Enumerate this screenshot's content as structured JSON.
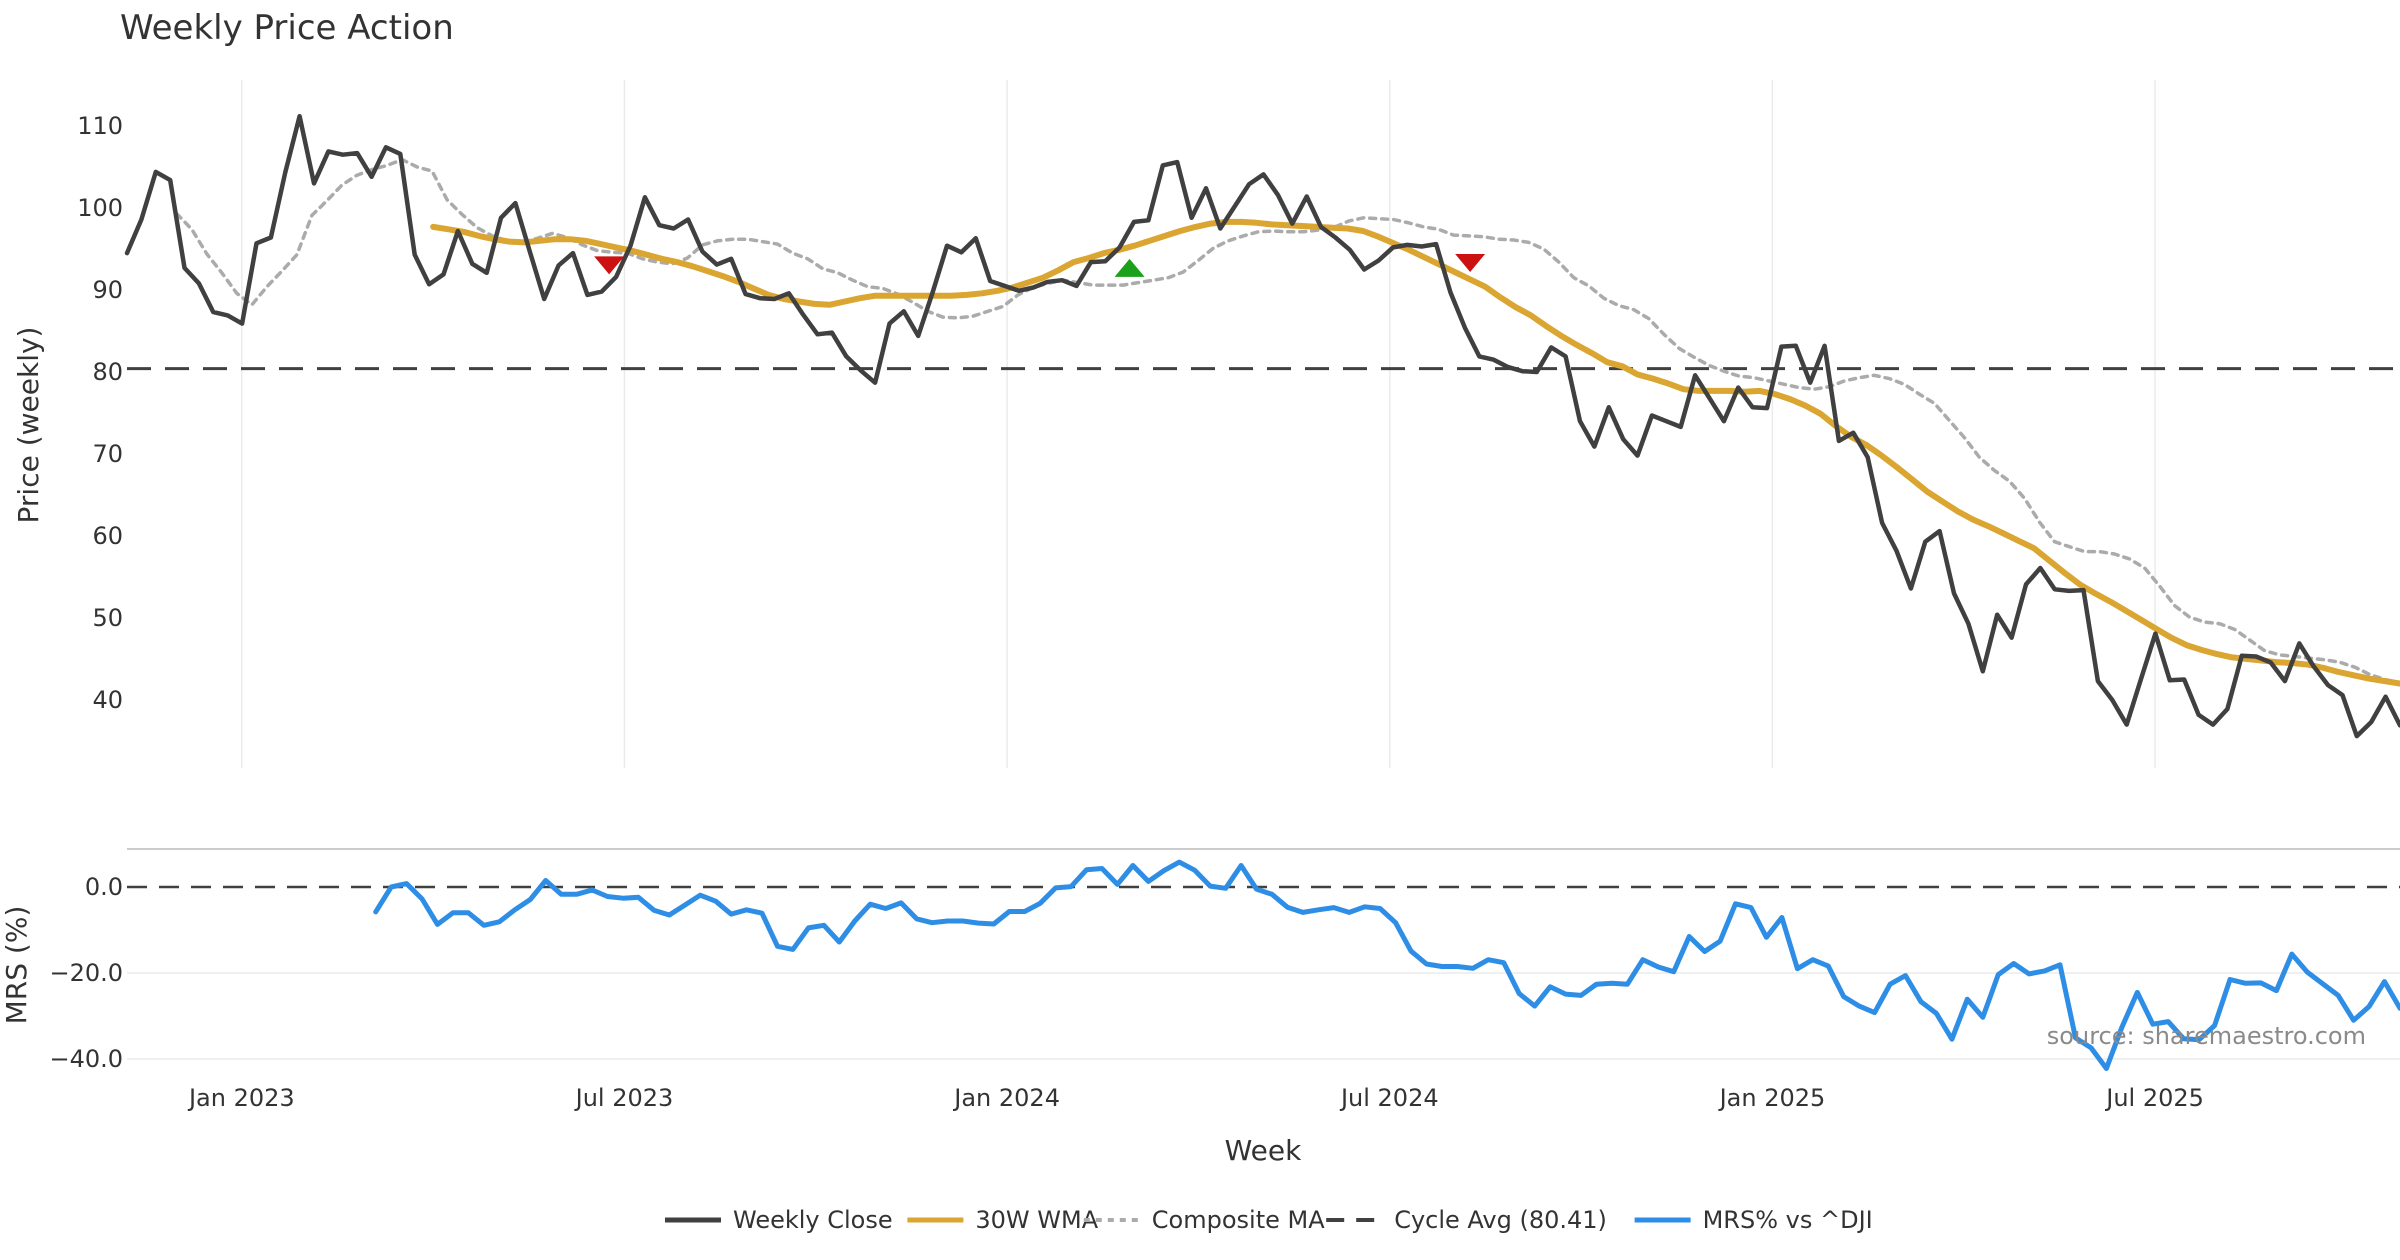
{
  "chart_data": {
    "type": "line",
    "title": "Weekly Price Action",
    "xlabel": "Week",
    "x_ticks": [
      "Jan 2023",
      "Jul 2023",
      "Jan 2024",
      "Jul 2024",
      "Jan 2025",
      "Jul 2025"
    ],
    "x_tick_values": [
      2023.0,
      2023.5,
      2024.0,
      2024.5,
      2025.0,
      2025.5
    ],
    "x_range": [
      2022.85,
      2025.82
    ],
    "price_panel": {
      "ylabel": "Price (weekly)",
      "ylim": [
        31,
        115
      ],
      "y_ticks": [
        40,
        50,
        60,
        70,
        80,
        90,
        100,
        110
      ],
      "cycle_avg": 80.41,
      "series": [
        {
          "name": "Weekly Close",
          "color": "#404040",
          "x_start": 2022.85,
          "x_end": 2025.82,
          "values": [
            94.5,
            98.6,
            104.4,
            103.4,
            92.7,
            90.8,
            87.3,
            86.9,
            85.9,
            95.7,
            96.4,
            104.3,
            111.2,
            103.0,
            106.9,
            106.5,
            106.7,
            103.8,
            107.4,
            106.6,
            94.3,
            90.7,
            91.9,
            97.2,
            93.2,
            92.1,
            98.8,
            100.6,
            94.7,
            88.9,
            93.0,
            94.5,
            89.4,
            89.8,
            91.6,
            95.4,
            101.3,
            97.9,
            97.5,
            98.6,
            94.7,
            93.1,
            93.8,
            89.5,
            89.0,
            88.9,
            89.6,
            87.0,
            84.6,
            84.8,
            81.9,
            80.2,
            78.7,
            85.9,
            87.4,
            84.4,
            89.7,
            95.4,
            94.6,
            96.3,
            91.1,
            90.5,
            89.9,
            90.3,
            91.0,
            91.2,
            90.5,
            93.4,
            93.5,
            95.2,
            98.3,
            98.5,
            105.2,
            105.6,
            98.8,
            102.4,
            97.5,
            100.2,
            102.9,
            104.1,
            101.6,
            98.1,
            101.4,
            97.7,
            96.4,
            94.9,
            92.5,
            93.6,
            95.2,
            95.5,
            95.3,
            95.6,
            89.7,
            85.4,
            81.9,
            81.5,
            80.6,
            80.1,
            80.0,
            83.0,
            81.9,
            74.0,
            70.9,
            75.7,
            71.8,
            69.8,
            74.7,
            74.0,
            73.3,
            79.6,
            76.8,
            74.0,
            78.1,
            75.7,
            75.6,
            83.1,
            83.2,
            78.7,
            83.2,
            71.6,
            72.6,
            69.6,
            61.6,
            58.2,
            53.6,
            59.3,
            60.6,
            53.0,
            49.3,
            43.5,
            50.4,
            47.6,
            54.1,
            56.1,
            53.5,
            53.3,
            53.4,
            42.3,
            40.0,
            37.0,
            42.6,
            48.1,
            42.4,
            42.5,
            38.2,
            37.0,
            38.9,
            45.4,
            45.3,
            44.6,
            42.3,
            46.9,
            44.1,
            41.8,
            40.6,
            35.6,
            37.3,
            40.4,
            36.9
          ]
        },
        {
          "name": "30W WMA",
          "color": "#DAA530",
          "x_start": 2023.25,
          "x_end": 2025.82,
          "values": [
            97.7,
            97.4,
            97.1,
            96.6,
            96.2,
            95.9,
            95.8,
            96.0,
            96.2,
            96.2,
            96.0,
            95.6,
            95.2,
            94.8,
            94.3,
            93.8,
            93.4,
            92.9,
            92.3,
            91.7,
            91.0,
            90.2,
            89.4,
            88.9,
            88.6,
            88.3,
            88.2,
            88.6,
            89.0,
            89.3,
            89.3,
            89.3,
            89.3,
            89.3,
            89.3,
            89.4,
            89.6,
            89.9,
            90.3,
            90.9,
            91.5,
            92.4,
            93.4,
            93.9,
            94.5,
            94.9,
            95.4,
            96.0,
            96.6,
            97.2,
            97.7,
            98.1,
            98.3,
            98.3,
            98.2,
            98.0,
            97.9,
            97.8,
            97.7,
            97.6,
            97.5,
            97.2,
            96.5,
            95.7,
            94.9,
            94.0,
            93.1,
            92.2,
            91.3,
            90.4,
            89.1,
            87.9,
            86.9,
            85.6,
            84.4,
            83.3,
            82.3,
            81.2,
            80.7,
            79.7,
            79.2,
            78.6,
            77.9,
            77.7,
            77.7,
            77.7,
            77.6,
            77.7,
            77.3,
            76.7,
            75.9,
            74.9,
            73.4,
            72.1,
            71.1,
            69.8,
            68.4,
            66.9,
            65.4,
            64.2,
            63.0,
            62.0,
            61.2,
            60.3,
            59.4,
            58.5,
            57.0,
            55.5,
            54.1,
            53.0,
            52.0,
            50.9,
            49.8,
            48.7,
            47.6,
            46.7,
            46.1,
            45.6,
            45.2,
            45.0,
            44.8,
            44.6,
            44.5,
            44.3,
            43.9,
            43.4,
            43.0,
            42.6,
            42.3,
            42.0
          ]
        },
        {
          "name": "Composite MA",
          "color": "#ABABAB",
          "x_start": 2022.915,
          "x_end": 2025.82,
          "values": [
            99.3,
            97.4,
            94.4,
            92.1,
            89.6,
            88.2,
            90.4,
            92.3,
            94.3,
            99.1,
            100.9,
            102.8,
            104.0,
            104.7,
            105.2,
            105.9,
            105.0,
            104.5,
            101.0,
            99.2,
            97.6,
            96.6,
            96.0,
            95.8,
            96.3,
            96.9,
            96.4,
            95.5,
            94.8,
            94.6,
            94.5,
            93.8,
            93.4,
            93.2,
            93.9,
            95.5,
            96.0,
            96.2,
            96.2,
            95.9,
            95.6,
            94.5,
            93.8,
            92.6,
            92.1,
            91.2,
            90.4,
            90.2,
            89.5,
            88.5,
            87.4,
            86.7,
            86.6,
            86.8,
            87.4,
            88.0,
            89.4,
            90.3,
            90.8,
            91.2,
            90.9,
            90.6,
            90.6,
            90.6,
            90.9,
            91.2,
            91.5,
            92.2,
            93.6,
            95.1,
            96.0,
            96.6,
            97.1,
            97.2,
            97.1,
            97.1,
            97.3,
            97.6,
            98.4,
            98.8,
            98.7,
            98.6,
            98.2,
            97.7,
            97.4,
            96.7,
            96.6,
            96.5,
            96.2,
            96.1,
            95.8,
            95.0,
            93.4,
            91.5,
            90.5,
            89.0,
            88.1,
            87.6,
            86.5,
            84.6,
            82.9,
            81.8,
            80.8,
            80.1,
            79.5,
            79.3,
            78.9,
            78.5,
            78.1,
            77.9,
            78.2,
            78.9,
            79.3,
            79.6,
            79.2,
            78.5,
            77.3,
            76.2,
            74.1,
            72.0,
            69.6,
            68.0,
            66.7,
            64.6,
            61.7,
            59.3,
            58.7,
            58.1,
            58.1,
            57.8,
            57.2,
            56.1,
            53.9,
            51.5,
            50.1,
            49.5,
            49.3,
            48.6,
            47.3,
            46.0,
            45.5,
            45.3,
            45.1,
            44.9,
            44.6,
            44.0,
            43.1,
            42.5,
            42.1
          ]
        }
      ],
      "markers": [
        {
          "x": 2023.48,
          "y": 93.0,
          "direction": "down",
          "color": "#CC1111"
        },
        {
          "x": 2024.16,
          "y": 92.7,
          "direction": "up",
          "color": "#1AA01A"
        },
        {
          "x": 2024.605,
          "y": 93.3,
          "direction": "down",
          "color": "#CC1111"
        }
      ]
    },
    "mrs_panel": {
      "ylabel": "MRS (%)",
      "ylim": [
        -44,
        7
      ],
      "y_ticks": [
        0.0,
        -20.0,
        -40.0
      ],
      "y_tick_labels": [
        "0.0",
        "−20.0",
        "−40.0"
      ],
      "zero_line": 0.0,
      "series": [
        {
          "name": "MRS% vs ^DJI",
          "color": "#2E8EE6",
          "x_start": 2023.175,
          "x_end": 2025.82,
          "values": [
            -5.8,
            0.0,
            0.8,
            -2.8,
            -8.7,
            -6.0,
            -6.0,
            -8.9,
            -8.1,
            -5.3,
            -2.9,
            1.5,
            -1.7,
            -1.7,
            -0.7,
            -2.2,
            -2.6,
            -2.4,
            -5.4,
            -6.5,
            -4.2,
            -1.9,
            -3.3,
            -6.3,
            -5.3,
            -6.1,
            -13.8,
            -14.5,
            -9.5,
            -8.9,
            -12.8,
            -7.9,
            -4.0,
            -5.0,
            -3.7,
            -7.4,
            -8.3,
            -7.9,
            -7.9,
            -8.4,
            -8.6,
            -5.7,
            -5.7,
            -3.8,
            -0.2,
            0.1,
            4.0,
            4.3,
            0.6,
            5.0,
            1.3,
            3.8,
            5.8,
            3.9,
            0.2,
            -0.3,
            5.0,
            -0.5,
            -1.7,
            -4.7,
            -5.9,
            -5.3,
            -4.8,
            -5.9,
            -4.6,
            -5.0,
            -8.3,
            -14.9,
            -17.9,
            -18.5,
            -18.5,
            -18.9,
            -16.9,
            -17.6,
            -24.8,
            -27.7,
            -23.2,
            -24.9,
            -25.2,
            -22.6,
            -22.4,
            -22.6,
            -16.9,
            -18.6,
            -19.7,
            -11.5,
            -15.0,
            -12.6,
            -3.9,
            -4.8,
            -11.7,
            -7.1,
            -19.0,
            -16.9,
            -18.4,
            -25.5,
            -27.7,
            -29.2,
            -22.6,
            -20.6,
            -26.7,
            -29.4,
            -35.4,
            -26.1,
            -30.3,
            -20.4,
            -17.8,
            -20.2,
            -19.5,
            -18.1,
            -35.1,
            -37.4,
            -42.2,
            -32.6,
            -24.5,
            -31.9,
            -31.3,
            -35.3,
            -35.5,
            -32.2,
            -21.5,
            -22.4,
            -22.3,
            -24.1,
            -15.6,
            -19.8,
            -22.5,
            -25.2,
            -31.0,
            -27.8,
            -22.0,
            -28.2
          ]
        }
      ]
    },
    "legend": {
      "placement": "bottom-center",
      "entries": [
        {
          "label": "Weekly Close",
          "style": "solid",
          "color": "#404040"
        },
        {
          "label": "30W WMA",
          "style": "solid",
          "color": "#DAA530"
        },
        {
          "label": "Composite MA",
          "style": "dotted",
          "color": "#ABABAB"
        },
        {
          "label": "Cycle Avg (80.41)",
          "style": "dashed",
          "color": "#404040"
        },
        {
          "label": "MRS% vs ^DJI",
          "style": "solid",
          "color": "#2E8EE6"
        }
      ]
    },
    "source_note": "source: sharemaestro.com"
  }
}
